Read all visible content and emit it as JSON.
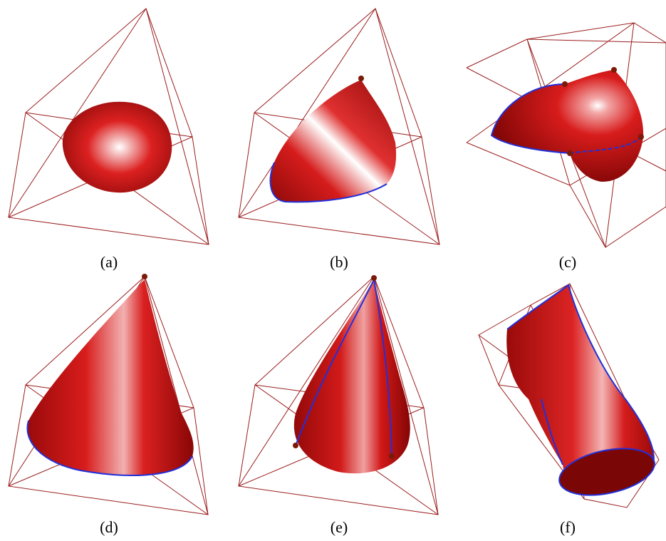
{
  "panels": [
    {
      "id": "a",
      "caption": "(a)"
    },
    {
      "id": "b",
      "caption": "(b)"
    },
    {
      "id": "c",
      "caption": "(c)"
    },
    {
      "id": "d",
      "caption": "(d)"
    },
    {
      "id": "e",
      "caption": "(e)"
    },
    {
      "id": "f",
      "caption": "(f)"
    }
  ],
  "colors": {
    "frame": "#9b1c1c",
    "surface": "#d81a1a",
    "surface_dark": "#7a0606",
    "highlight": "#ffffff",
    "boundary_curve": "#2230d8",
    "control_point": "#7a1a08"
  }
}
